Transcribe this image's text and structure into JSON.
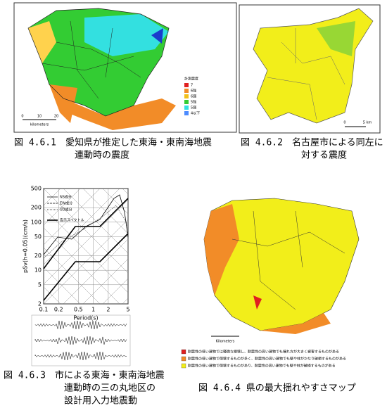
{
  "figures": [
    {
      "caption": [
        "図 4.6.1　愛知県が推定した東海・東南海地震",
        "連動時の震度"
      ],
      "legend_title": "計測震度",
      "legend": [
        "7",
        "6強",
        "6弱",
        "5強",
        "5弱",
        "4以下"
      ],
      "scale": [
        "0",
        "10",
        "20",
        "kilometers"
      ]
    },
    {
      "caption": [
        "図 4.6.2　名古屋市による同左に",
        "対する震度"
      ],
      "scale": [
        "0",
        "5 km"
      ]
    },
    {
      "caption": [
        "図 4.6.3　市による東海・東南海地震",
        "連動時の三の丸地区の",
        "設計用入力地震動"
      ],
      "y_label": "pSv(h=0.05)(cm/s)",
      "x_label": "Period(s)",
      "yticks": [
        2,
        5,
        10,
        20,
        50,
        100,
        200,
        500
      ],
      "ylim": [
        2,
        500
      ],
      "xticks": [
        0.1,
        0.2,
        0.5,
        1,
        2,
        5
      ],
      "xlim": [
        0.1,
        5
      ],
      "legend": [
        "NS成分",
        "EW成分",
        "UD成分",
        "告示スペクトル"
      ]
    },
    {
      "caption": [
        "図 4.6.4 県の最大揺れやすさマップ"
      ],
      "scale": [
        "Kilometers"
      ],
      "legend": [
        "耐震性の低い建物では軽微な損壊し、耐震性の高い建物でも揺れ方が大きく被害するものがある",
        "耐震性の低い建物で倒壊するものが多く、耐震性の高い建物でも壁や柱がかなり破損するものがある",
        "耐震性の低い建物で倒壊するものがあり、耐震性の高い建物でも壁や柱が破損するものがある"
      ]
    }
  ]
}
